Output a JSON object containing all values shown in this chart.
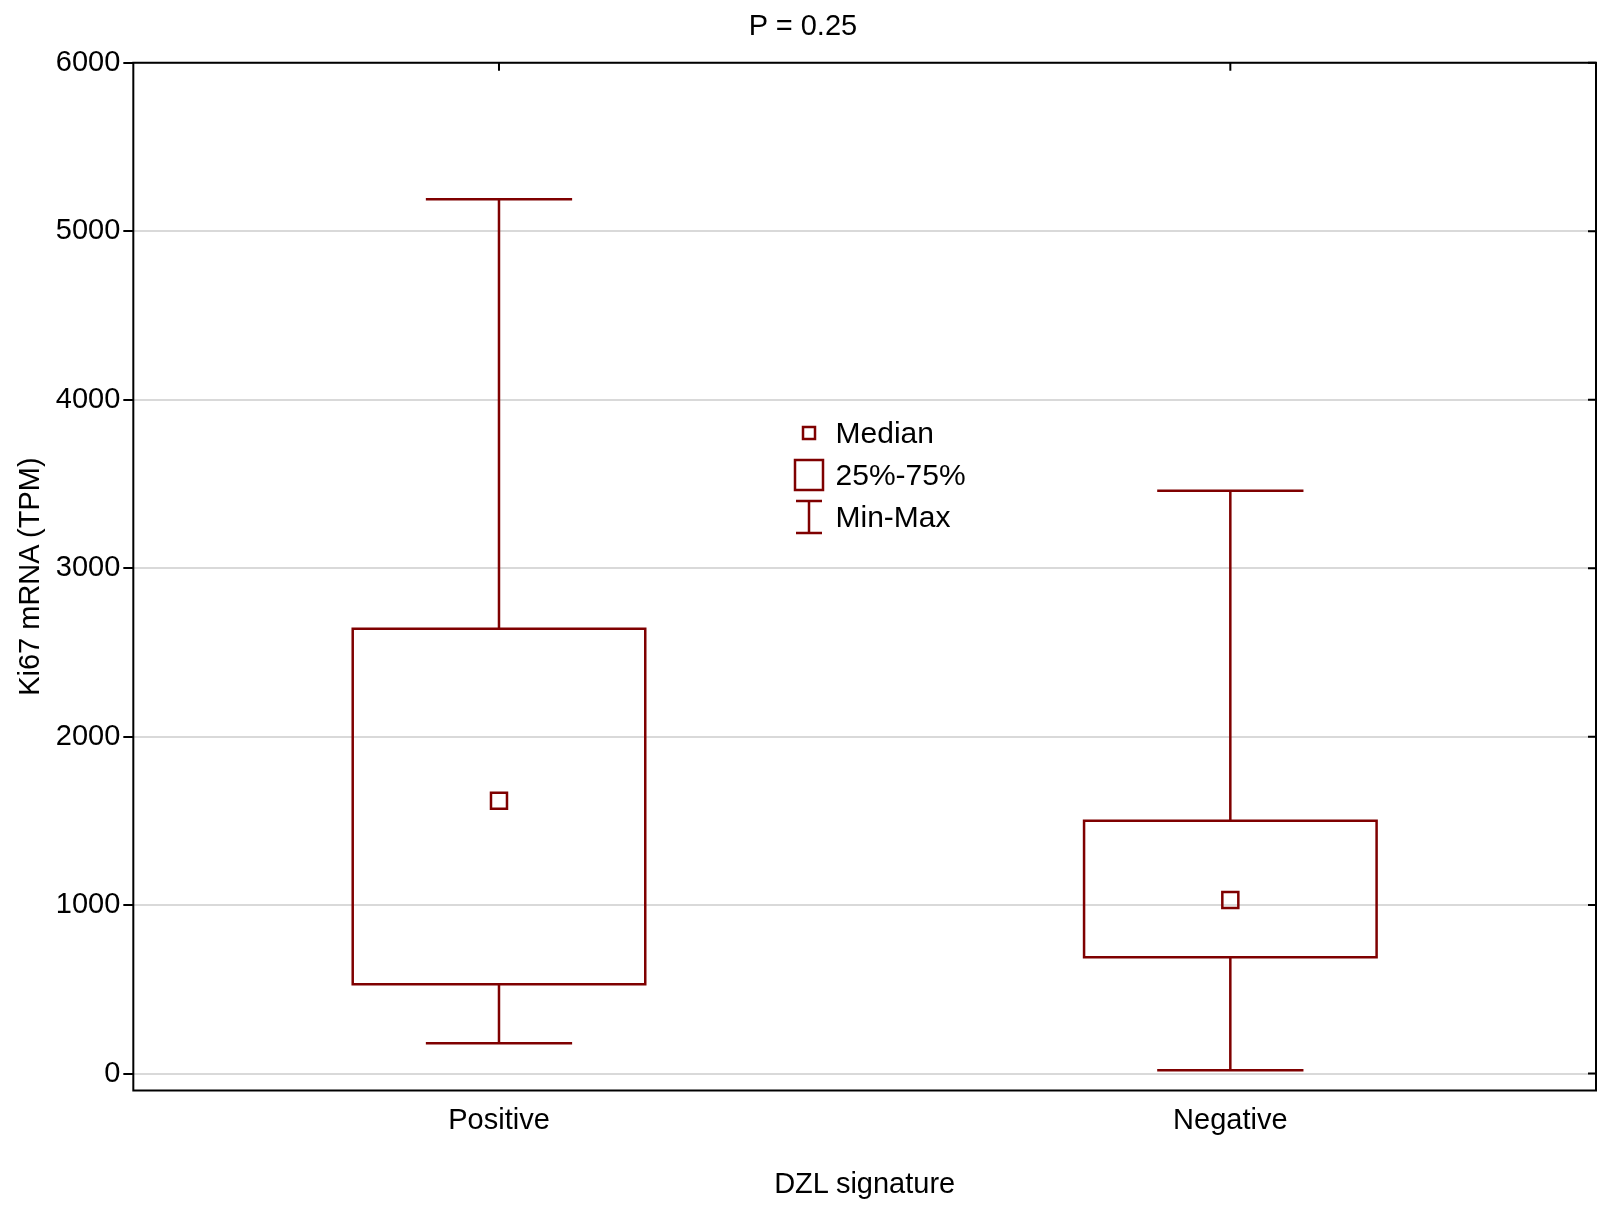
{
  "chart_data": {
    "type": "box",
    "title": "P = 0.25",
    "xlabel": "DZL signature",
    "ylabel": "Ki67 mRNA (TPM)",
    "categories": [
      "Positive",
      "Negative"
    ],
    "series": [
      {
        "type": "box",
        "color": "#7f0000",
        "boxes": [
          {
            "low": 180,
            "q1": 530,
            "median": 1620,
            "q3": 2640,
            "high": 5190
          },
          {
            "low": 20,
            "q1": 690,
            "median": 1030,
            "q3": 1500,
            "high": 3460
          }
        ]
      }
    ],
    "ylim": [
      -100,
      6000
    ],
    "yticks": [
      0,
      1000,
      2000,
      3000,
      4000,
      5000,
      6000
    ],
    "grid": "y",
    "annotations": [
      "Median",
      "25%-75%",
      "Min-Max"
    ]
  }
}
